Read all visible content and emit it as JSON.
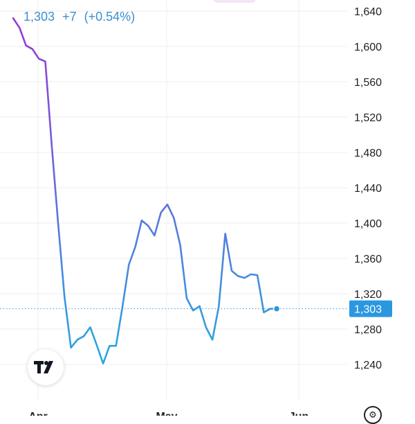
{
  "header": {
    "price": "1,303",
    "change": "+7",
    "change_pct": "(+0.54%)"
  },
  "branding": {
    "logo_text": "TV"
  },
  "settings": {
    "icon": "gear-icon",
    "glyph": "⚙"
  },
  "colors": {
    "line_top": "#9b35d8",
    "line_bottom": "#27a8e0",
    "accent": "#2a97e0",
    "grid": "#eeeeee"
  },
  "chart_data": {
    "type": "line",
    "title": "",
    "xlabel": "",
    "ylabel": "",
    "x_ticks": [
      "Apr",
      "May",
      "Jun"
    ],
    "y_ticks": [
      1640,
      1600,
      1560,
      1520,
      1480,
      1440,
      1400,
      1360,
      1320,
      1280,
      1240
    ],
    "y_tick_labels": [
      "1,640",
      "1,600",
      "1,560",
      "1,520",
      "1,480",
      "1,440",
      "1,400",
      "1,360",
      "1,320",
      "1,280",
      "1,240"
    ],
    "ylim": [
      1216,
      1650
    ],
    "last_value": 1303,
    "last_value_label": "1,303",
    "grid": true,
    "series": [
      {
        "x": [
          "Mar 31",
          "Apr 1",
          "Apr 2",
          "Apr 3",
          "Apr 4",
          "Apr 5",
          "Apr 8",
          "Apr 9",
          "Apr 10",
          "Apr 11",
          "Apr 12",
          "Apr 15",
          "Apr 16",
          "Apr 17",
          "Apr 18",
          "Apr 19",
          "Apr 22",
          "Apr 23",
          "Apr 24",
          "Apr 25",
          "Apr 26",
          "Apr 29",
          "Apr 30",
          "May 1",
          "May 2",
          "May 3",
          "May 6",
          "May 7",
          "May 8",
          "May 9",
          "May 10",
          "May 13",
          "May 14",
          "May 15",
          "May 16",
          "May 17",
          "May 20",
          "May 21",
          "May 22",
          "May 23",
          "May 24",
          "May 27"
        ],
        "values": [
          1632,
          1621,
          1601,
          1597,
          1586,
          1583,
          1488,
          1400,
          1316,
          1259,
          1268,
          1272,
          1282,
          1262,
          1241,
          1261,
          1261,
          1305,
          1353,
          1373,
          1403,
          1397,
          1386,
          1412,
          1421,
          1406,
          1375,
          1315,
          1301,
          1306,
          1282,
          1268,
          1306,
          1388,
          1346,
          1340,
          1338,
          1342,
          1341,
          1299,
          1303,
          1303
        ]
      }
    ]
  }
}
